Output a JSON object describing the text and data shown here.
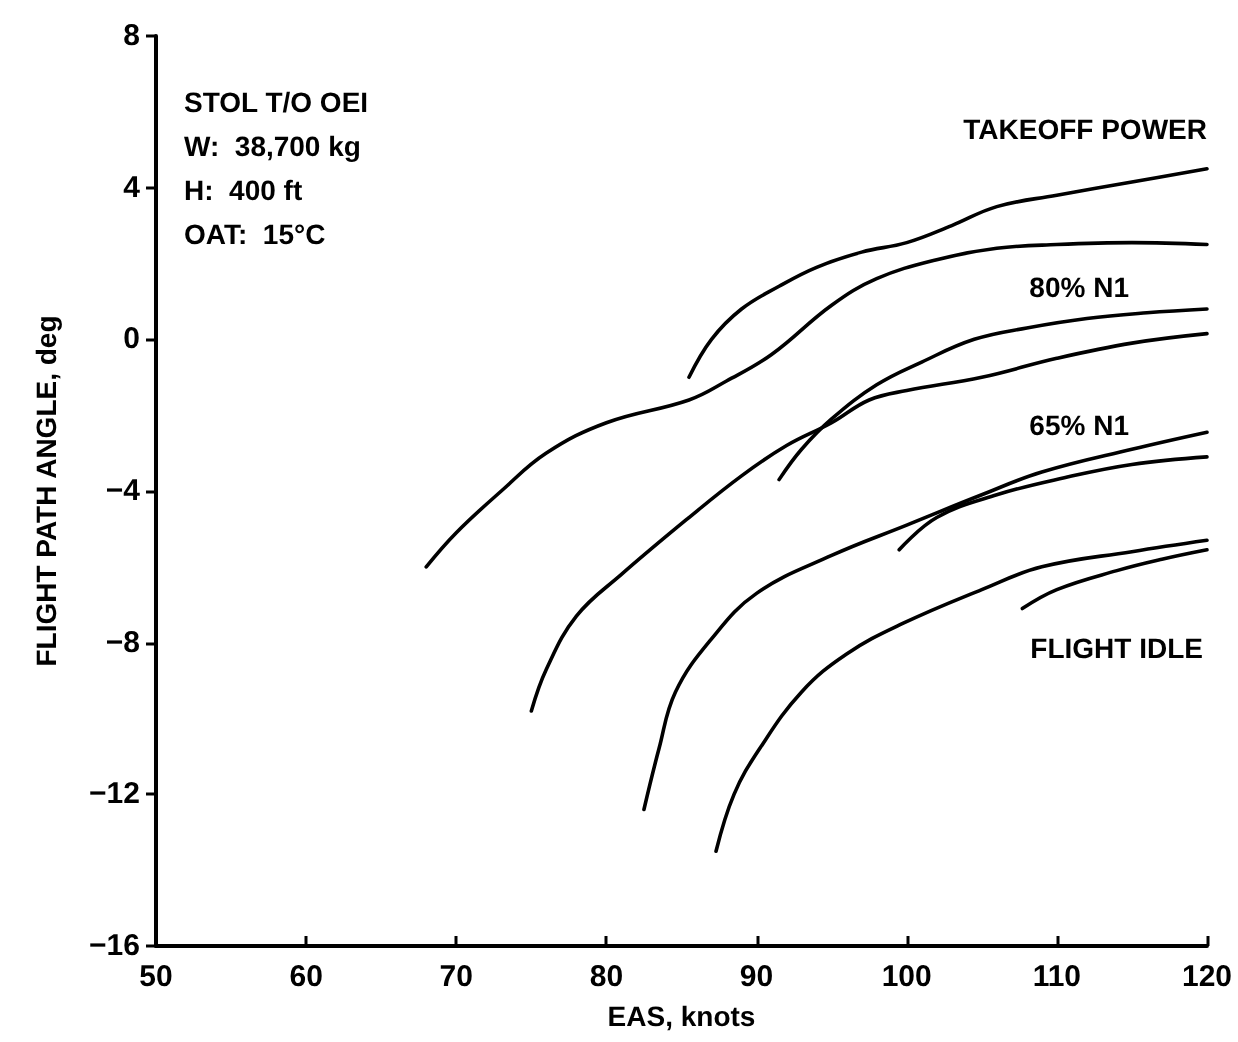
{
  "chart_data": {
    "type": "line",
    "xlabel": "EAS, knots",
    "ylabel": "FLIGHT PATH ANGLE, deg",
    "xlim": [
      50,
      120
    ],
    "xticks": [
      50,
      60,
      70,
      80,
      90,
      100,
      110,
      120
    ],
    "ylim": [
      -16,
      8
    ],
    "yticks": [
      -16,
      -12,
      -8,
      -4,
      0,
      4,
      8
    ],
    "grid": false,
    "marker": "none",
    "line_style": "solid",
    "annotations": [
      "STOL T/O OEI",
      "W:  38,700 kg",
      "H:  400 ft",
      "OAT:  15°C"
    ],
    "series": [
      {
        "color": "#000000",
        "x": [
          68,
          70,
          73,
          76,
          80,
          85.5,
          88,
          91,
          95,
          98,
          102,
          106,
          110,
          115,
          120
        ],
        "values": [
          -6,
          -5.1,
          -4,
          -3,
          -2.2,
          -1.6,
          -1.1,
          -0.4,
          0.9,
          1.6,
          2.1,
          2.4,
          2.5,
          2.55,
          2.5
        ]
      },
      {
        "name": "TAKEOFF POWER",
        "color": "#000000",
        "x": [
          85.5,
          87,
          89,
          91.5,
          94,
          97,
          100,
          103,
          106,
          110,
          115,
          120
        ],
        "values": [
          -1,
          0,
          0.8,
          1.4,
          1.9,
          2.3,
          2.55,
          3,
          3.5,
          3.8,
          4.15,
          4.5
        ]
      },
      {
        "color": "#000000",
        "x": [
          75,
          76,
          78,
          81,
          85.5,
          89,
          92,
          95,
          97.5,
          100,
          105,
          110,
          115,
          120
        ],
        "values": [
          -9.8,
          -8.7,
          -7.3,
          -6.2,
          -4.7,
          -3.6,
          -2.8,
          -2.2,
          -1.6,
          -1.35,
          -1,
          -0.5,
          -0.1,
          0.15
        ]
      },
      {
        "name": "80% N1",
        "color": "#000000",
        "x": [
          91.5,
          93,
          95,
          98,
          101,
          104.5,
          108,
          112,
          116,
          120
        ],
        "values": [
          -3.7,
          -2.9,
          -2.1,
          -1.2,
          -0.6,
          0,
          0.3,
          0.55,
          0.7,
          0.8
        ]
      },
      {
        "color": "#000000",
        "x": [
          82.5,
          83.5,
          84.6,
          87,
          90,
          95,
          100,
          105,
          109,
          115,
          120
        ],
        "values": [
          -12.4,
          -10.8,
          -9.3,
          -7.9,
          -6.7,
          -5.7,
          -4.9,
          -4.1,
          -3.5,
          -2.9,
          -2.45
        ]
      },
      {
        "name": "65% N1",
        "color": "#000000",
        "x": [
          99.5,
          102,
          106,
          110.5,
          115,
          120
        ],
        "values": [
          -5.55,
          -4.7,
          -4.1,
          -3.65,
          -3.3,
          -3.1
        ]
      },
      {
        "color": "#000000",
        "x": [
          87.3,
          88.5,
          90.2,
          93,
          96,
          99.7,
          105,
          109,
          115,
          120
        ],
        "values": [
          -13.5,
          -12,
          -10.8,
          -9.3,
          -8.3,
          -7.5,
          -6.6,
          -6,
          -5.6,
          -5.3
        ]
      },
      {
        "name": "FLIGHT IDLE",
        "color": "#000000",
        "x": [
          107.7,
          110,
          114,
          117,
          120
        ],
        "values": [
          -7.1,
          -6.6,
          -6.1,
          -5.8,
          -5.55
        ]
      }
    ]
  }
}
